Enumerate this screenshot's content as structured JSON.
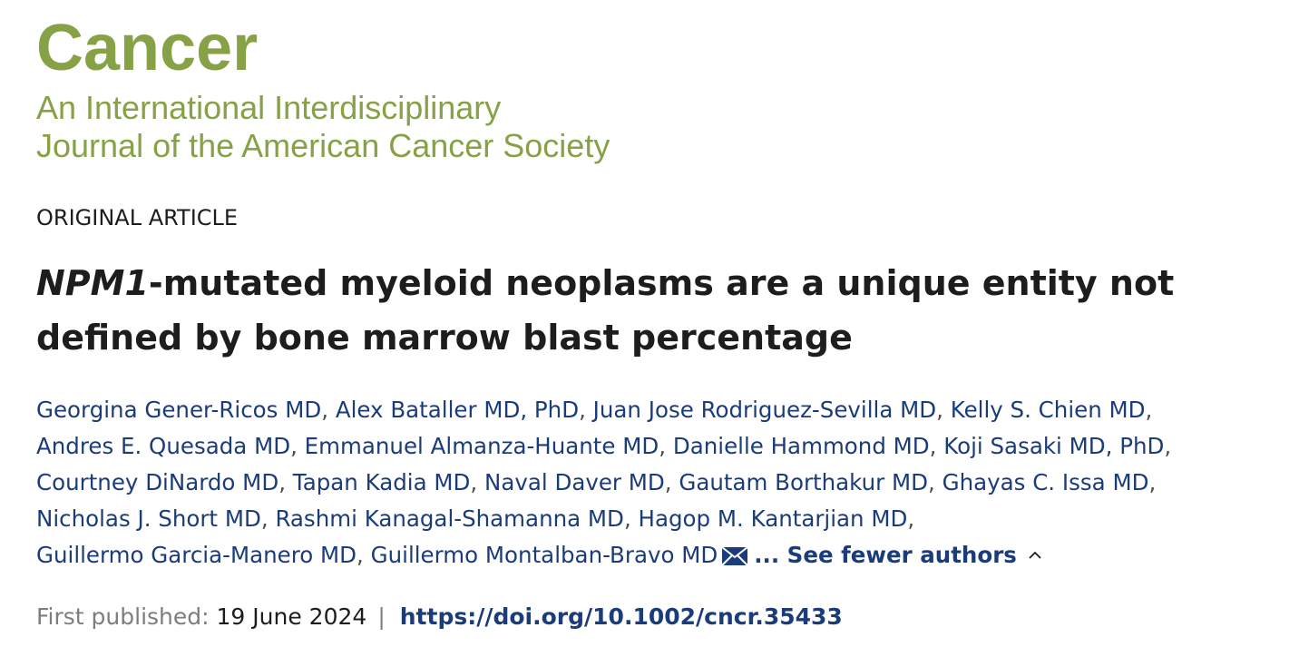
{
  "journal": {
    "name": "Cancer",
    "subtitle_line1": "An International Interdisciplinary",
    "subtitle_line2": "Journal of the American Cancer Society"
  },
  "article": {
    "type": "ORIGINAL ARTICLE",
    "title_italic": "NPM1",
    "title_line1_rest": "-mutated myeloid neoplasms are a unique entity not",
    "title_line2": "defined by bone marrow blast percentage"
  },
  "authors": {
    "line1": [
      "Georgina Gener-Ricos MD",
      "Alex Bataller MD, PhD",
      "Juan Jose Rodriguez-Sevilla MD",
      "Kelly S. Chien MD"
    ],
    "line2": [
      "Andres E. Quesada MD",
      "Emmanuel Almanza-Huante MD",
      "Danielle Hammond MD",
      "Koji Sasaki MD, PhD"
    ],
    "line3": [
      "Courtney DiNardo MD",
      "Tapan Kadia MD",
      "Naval Daver MD",
      "Gautam Borthakur MD",
      "Ghayas C. Issa MD"
    ],
    "line4": [
      "Nicholas J. Short MD",
      "Rashmi Kanagal-Shamanna MD",
      "Hagop M. Kantarjian MD"
    ],
    "line5": [
      "Guillermo Garcia-Manero MD",
      "Guillermo Montalban-Bravo MD"
    ],
    "separator": ",",
    "see_fewer_label": "... See fewer authors",
    "mail_icon": "envelope-icon",
    "chevron_icon": "chevron-up-icon"
  },
  "publication": {
    "first_published_label": "First published:",
    "date": "19 June 2024",
    "divider": "|",
    "doi": "https://doi.org/10.1002/cncr.35433"
  },
  "colors": {
    "journal_green": "#86a146",
    "author_blue": "#1b3c7a",
    "text_dark": "#1c1d1e",
    "text_gray": "#7b7d80"
  }
}
